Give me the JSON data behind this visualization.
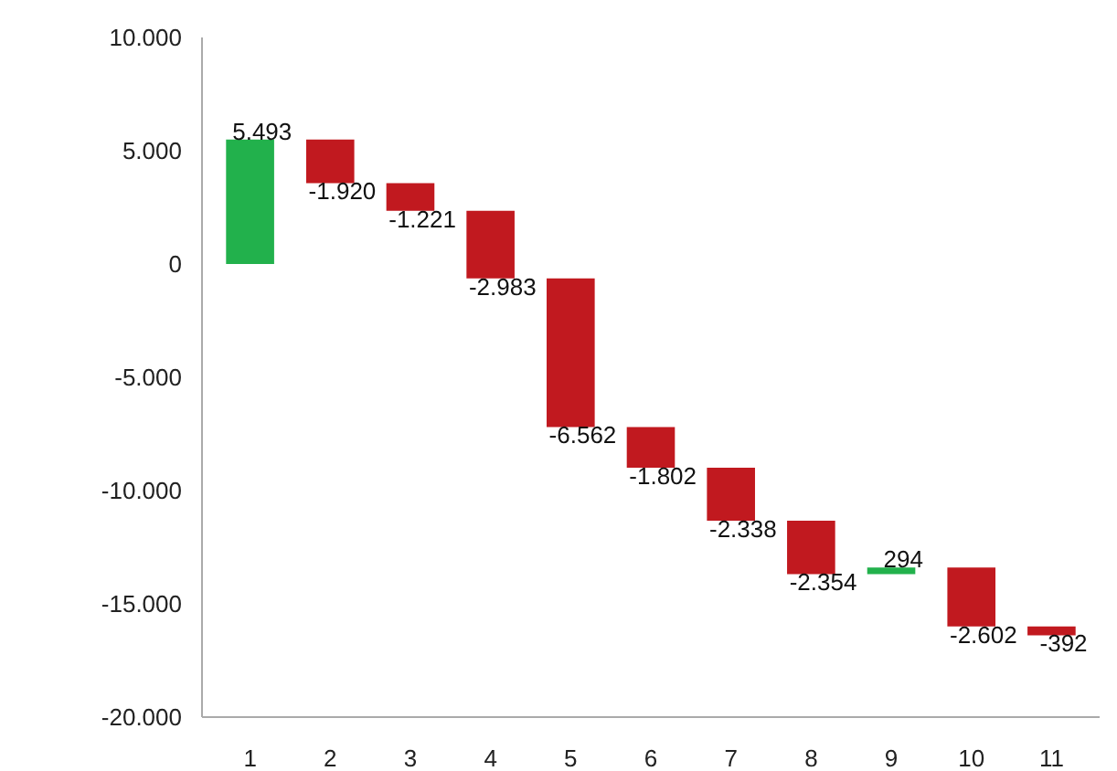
{
  "chart_data": {
    "type": "bar",
    "categories": [
      "1",
      "2",
      "3",
      "4",
      "5",
      "6",
      "7",
      "8",
      "9",
      "10",
      "11"
    ],
    "values": [
      5493,
      -1920,
      -1221,
      -2983,
      -6562,
      -1802,
      -2338,
      -2354,
      294,
      -2602,
      -392
    ],
    "base": [
      0,
      5493,
      3573,
      2352,
      -631,
      -7193,
      -8995,
      -11333,
      -13687,
      -13393,
      -15995
    ],
    "colors": [
      "#22b14c",
      "#c1191f",
      "#c1191f",
      "#c1191f",
      "#c1191f",
      "#c1191f",
      "#c1191f",
      "#c1191f",
      "#22b14c",
      "#c1191f",
      "#c1191f"
    ],
    "value_labels": [
      "5.493",
      "-1.920",
      "-1.221",
      "-2.983",
      "-6.562",
      "-1.802",
      "-2.338",
      "-2.354",
      "294",
      "-2.602",
      "-392"
    ],
    "ylim": [
      -20000,
      10000
    ],
    "yticks": [
      {
        "value": 10000,
        "label": "10.000"
      },
      {
        "value": 5000,
        "label": "5.000"
      },
      0,
      {
        "value": -5000,
        "label": "-5.000"
      },
      {
        "value": -10000,
        "label": "-10.000"
      },
      {
        "value": -15000,
        "label": "-15.000"
      },
      {
        "value": -20000,
        "label": "-20.000"
      }
    ],
    "grid": false
  }
}
